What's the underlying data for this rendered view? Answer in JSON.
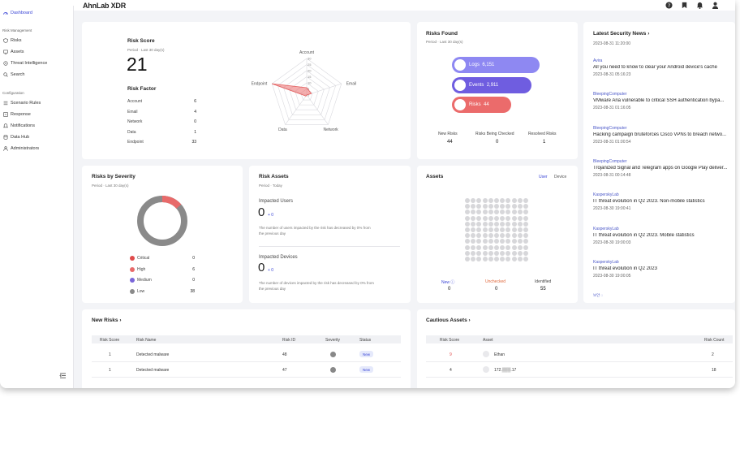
{
  "app": {
    "logo": "AhnLab XDR"
  },
  "colors": {
    "accent": "#3b46d6",
    "logs": "#8e88f2",
    "events": "#6f5de0",
    "risks": "#eb6b6b",
    "critical": "#e04b4b",
    "high": "#e86a6a",
    "medium": "#7a66d9",
    "low": "#8a8a8a"
  },
  "sidebar": {
    "dashboard": "Dashboard",
    "risk_management": "Risk Management",
    "risks": "Risks",
    "assets": "Assets",
    "threat_intelligence": "Threat Intelligence",
    "search": "Search",
    "configuration": "Configuration",
    "scenario_rules": "Scenario Rules",
    "response": "Response",
    "notifications": "Notifications",
    "data_hub": "Data Hub",
    "administrators": "Administrators"
  },
  "risk_score": {
    "title": "Risk Score",
    "period": "Period · Last 30 day(s)",
    "value": "21",
    "factor_title": "Risk Factor",
    "factors": [
      {
        "label": "Account",
        "value": "6"
      },
      {
        "label": "Email",
        "value": "4"
      },
      {
        "label": "Network",
        "value": "0"
      },
      {
        "label": "Data",
        "value": "1"
      },
      {
        "label": "Endpoint",
        "value": "33"
      }
    ],
    "radar_ticks": [
      "30",
      "25",
      "20",
      "15",
      "10",
      "5",
      "0"
    ],
    "radar_axes": [
      "Account",
      "Email",
      "Network",
      "Data",
      "Endpoint"
    ]
  },
  "risks_found": {
    "title": "Risks Found",
    "period": "Period · Last 30 day(s)",
    "logs_label": "Logs",
    "logs_value": "6,151",
    "events_label": "Events",
    "events_value": "2,911",
    "risks_label": "Risks",
    "risks_value": "44",
    "new_label": "New Risks",
    "new_value": "44",
    "checked_label": "Risks Being Checked",
    "checked_value": "0",
    "resolved_label": "Resolved Risks",
    "resolved_value": "1"
  },
  "severity": {
    "title": "Risks by Severity",
    "period": "Period · Last 30 day(s)",
    "items": [
      {
        "label": "Critical",
        "value": "0"
      },
      {
        "label": "High",
        "value": "6"
      },
      {
        "label": "Medium",
        "value": "0"
      },
      {
        "label": "Low",
        "value": "38"
      }
    ]
  },
  "risk_assets": {
    "title": "Risk Assets",
    "period": "Period · Today",
    "users_title": "Impacted Users",
    "users_value": "0",
    "users_delta": "+ 0",
    "users_desc1": "The number of users impacted by the risk has decreased by 0% from",
    "users_desc2": "the previous day",
    "devices_title": "Impacted Devices",
    "devices_value": "0",
    "devices_delta": "+ 0",
    "devices_desc1": "The number of devices impacted by the risk has decreased by 0% from",
    "devices_desc2": "the previous day"
  },
  "assets": {
    "title": "Assets",
    "tab_user": "User",
    "tab_device": "Device",
    "new_label": "New",
    "new_value": "0",
    "unchecked_label": "Unchecked",
    "unchecked_value": "0",
    "identified_label": "Identified",
    "identified_value": "55"
  },
  "news": {
    "title": "Latest Security News",
    "top_date": "2023-08-31 11:20:00",
    "items": [
      {
        "source": "Avira",
        "title": "All you need to know to clear your Android device's cache",
        "date": "2023-08-31 05:16:23"
      },
      {
        "source": "BleepingComputer",
        "title": "VMware Aria vulnerable to critical SSH authentication bypa...",
        "date": "2023-08-31 01:16:05"
      },
      {
        "source": "BleepingComputer",
        "title": "Hacking campaign bruteforces Cisco VPNs to breach netwo...",
        "date": "2023-08-31 01:00:54"
      },
      {
        "source": "BleepingComputer",
        "title": "Trojanized Signal and Telegram apps on Google Play deliver...",
        "date": "2023-08-31 00:14:48"
      },
      {
        "source": "KasperskyLab",
        "title": "IT threat evolution in Q2 2023. Non-mobile statistics",
        "date": "2023-08-30 19:00:41"
      },
      {
        "source": "KasperskyLab",
        "title": "IT threat evolution in Q2 2023. Mobile statistics",
        "date": "2023-08-30 19:00:03"
      },
      {
        "source": "KasperskyLab",
        "title": "IT threat evolution in Q2 2023",
        "date": "2023-08-30 19:00:05"
      }
    ],
    "more": "보안 ◌"
  },
  "new_risks": {
    "title": "New Risks",
    "headers": {
      "score": "Risk Score",
      "name": "Risk Name",
      "id": "Risk ID",
      "severity": "Severity",
      "status": "Status"
    },
    "rows": [
      {
        "score": "1",
        "name": "Detected malware",
        "id": "48",
        "status": "New"
      },
      {
        "score": "1",
        "name": "Detected malware",
        "id": "47",
        "status": "New"
      }
    ]
  },
  "cautious_assets": {
    "title": "Cautious Assets",
    "headers": {
      "score": "Risk Score",
      "asset": "Asset",
      "count": "Risk Count"
    },
    "rows": [
      {
        "score": "9",
        "asset": "Ethan",
        "count": "2"
      },
      {
        "score": "4",
        "asset": "172.▒▒▒.17",
        "count": "18"
      }
    ]
  }
}
